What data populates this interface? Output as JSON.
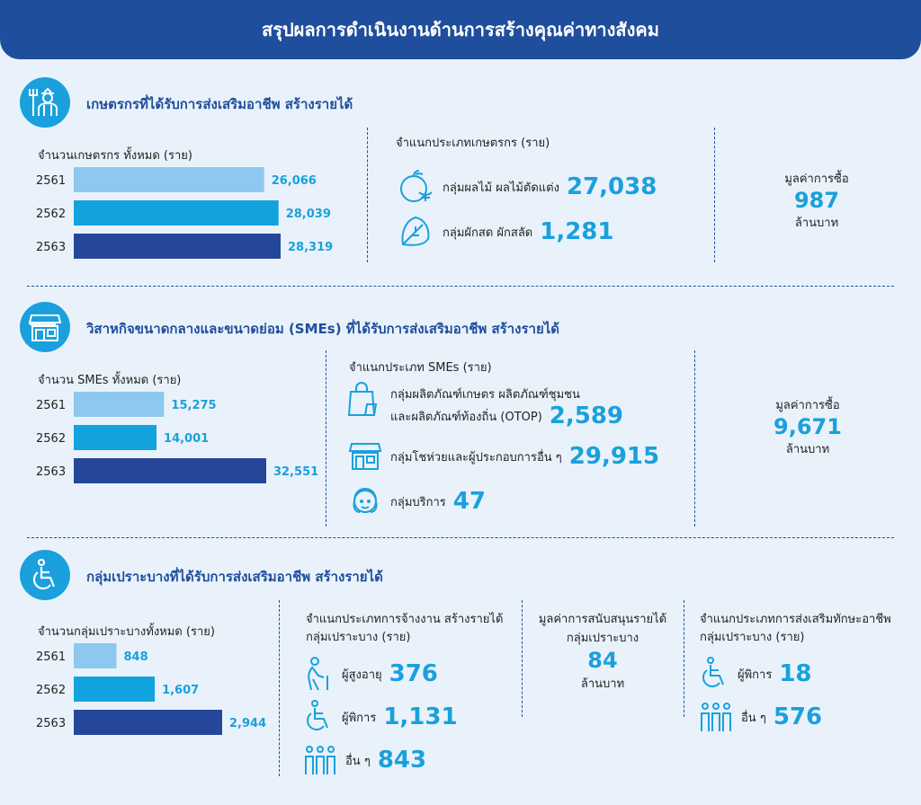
{
  "header": {
    "title": "สรุปผลการดำเนินงานด้านการสร้างคุณค่าทางสังคม"
  },
  "sections": {
    "farmers": {
      "title": "เกษตรกรที่ได้รับการส่งเสริมอาชีพ สร้างรายได้",
      "chart_label": "จำนวนเกษตรกร ทั้งหมด (ราย)",
      "types_label": "จำแนกประเภทเกษตรกร (ราย)",
      "types": [
        {
          "label": "กลุ่มผลไม้ ผลไม้ตัดแต่ง",
          "value": "27,038",
          "icon": "fruit-icon"
        },
        {
          "label": "กลุ่มผักสด ผักสลัด",
          "value": "1,281",
          "icon": "vegetable-icon"
        }
      ],
      "purchase": {
        "label": "มูลค่าการซื้อ",
        "value": "987",
        "unit": "ล้านบาท"
      }
    },
    "smes": {
      "title": "วิสาหกิจขนาดกลางและขนาดย่อม (SMEs) ที่ได้รับการส่งเสริมอาชีพ สร้างรายได้",
      "chart_label": "จำนวน SMEs ทั้งหมด (ราย)",
      "types_label": "จำแนกประเภท SMEs (ราย)",
      "types": [
        {
          "label_line1": "กลุ่มผลิตภัณฑ์เกษตร ผลิตภัณฑ์ชุมชน",
          "label_line2": "และผลิตภัณฑ์ท้องถิ่น (OTOP)",
          "value": "2,589",
          "icon": "shopping-bag-icon"
        },
        {
          "label": "กลุ่มโชห่วยและผู้ประกอบการอื่น ๆ",
          "value": "29,915",
          "icon": "shop-icon"
        },
        {
          "label": "กลุ่มบริการ",
          "value": "47",
          "icon": "service-woman-icon"
        }
      ],
      "purchase": {
        "label": "มูลค่าการซื้อ",
        "value": "9,671",
        "unit": "ล้านบาท"
      }
    },
    "vulnerable": {
      "title": "กลุ่มเปราะบางที่ได้รับการส่งเสริมอาชีพ สร้างรายได้",
      "chart_label": "จำนวนกลุ่มเปราะบางทั้งหมด (ราย)",
      "employment_label_1": "จำแนกประเภทการจ้างงาน สร้างรายได้",
      "employment_label_2": "กลุ่มเปราะบาง (ราย)",
      "employment": [
        {
          "label": "ผู้สูงอายุ",
          "value": "376",
          "icon": "elderly-icon"
        },
        {
          "label": "ผู้พิการ",
          "value": "1,131",
          "icon": "wheelchair-icon"
        },
        {
          "label": "อื่น ๆ",
          "value": "843",
          "icon": "group-people-icon"
        }
      ],
      "support": {
        "label_1": "มูลค่าการสนับสนุนรายได้",
        "label_2": "กลุ่มเปราะบาง",
        "value": "84",
        "unit": "ล้านบาท"
      },
      "skills_label_1": "จำแนกประเภทการส่งเสริมทักษะอาชีพ",
      "skills_label_2": "กลุ่มเปราะบาง (ราย)",
      "skills": [
        {
          "label": "ผู้พิการ",
          "value": "18",
          "icon": "wheelchair-icon"
        },
        {
          "label": "อื่น ๆ",
          "value": "576",
          "icon": "group-people-icon"
        }
      ]
    }
  },
  "colors": {
    "bar_2561": "#8ec8ee",
    "bar_2562": "#12a3df",
    "bar_2563": "#25479a",
    "accent": "#1aa0dc",
    "header": "#1f4e9c"
  },
  "chart_data": [
    {
      "type": "bar",
      "categories": [
        "2561",
        "2562",
        "2563"
      ],
      "values": [
        26066,
        28039,
        28319
      ],
      "value_labels": [
        "26,066",
        "28,039",
        "28,319"
      ],
      "title": "จำนวนเกษตรกร ทั้งหมด (ราย)"
    },
    {
      "type": "bar",
      "categories": [
        "2561",
        "2562",
        "2563"
      ],
      "values": [
        15275,
        14001,
        32551
      ],
      "value_labels": [
        "15,275",
        "14,001",
        "32,551"
      ],
      "title": "จำนวน SMEs ทั้งหมด (ราย)"
    },
    {
      "type": "bar",
      "categories": [
        "2561",
        "2562",
        "2563"
      ],
      "values": [
        848,
        1607,
        2944
      ],
      "value_labels": [
        "848",
        "1,607",
        "2,944"
      ],
      "title": "จำนวนกลุ่มเปราะบางทั้งหมด (ราย)"
    }
  ]
}
